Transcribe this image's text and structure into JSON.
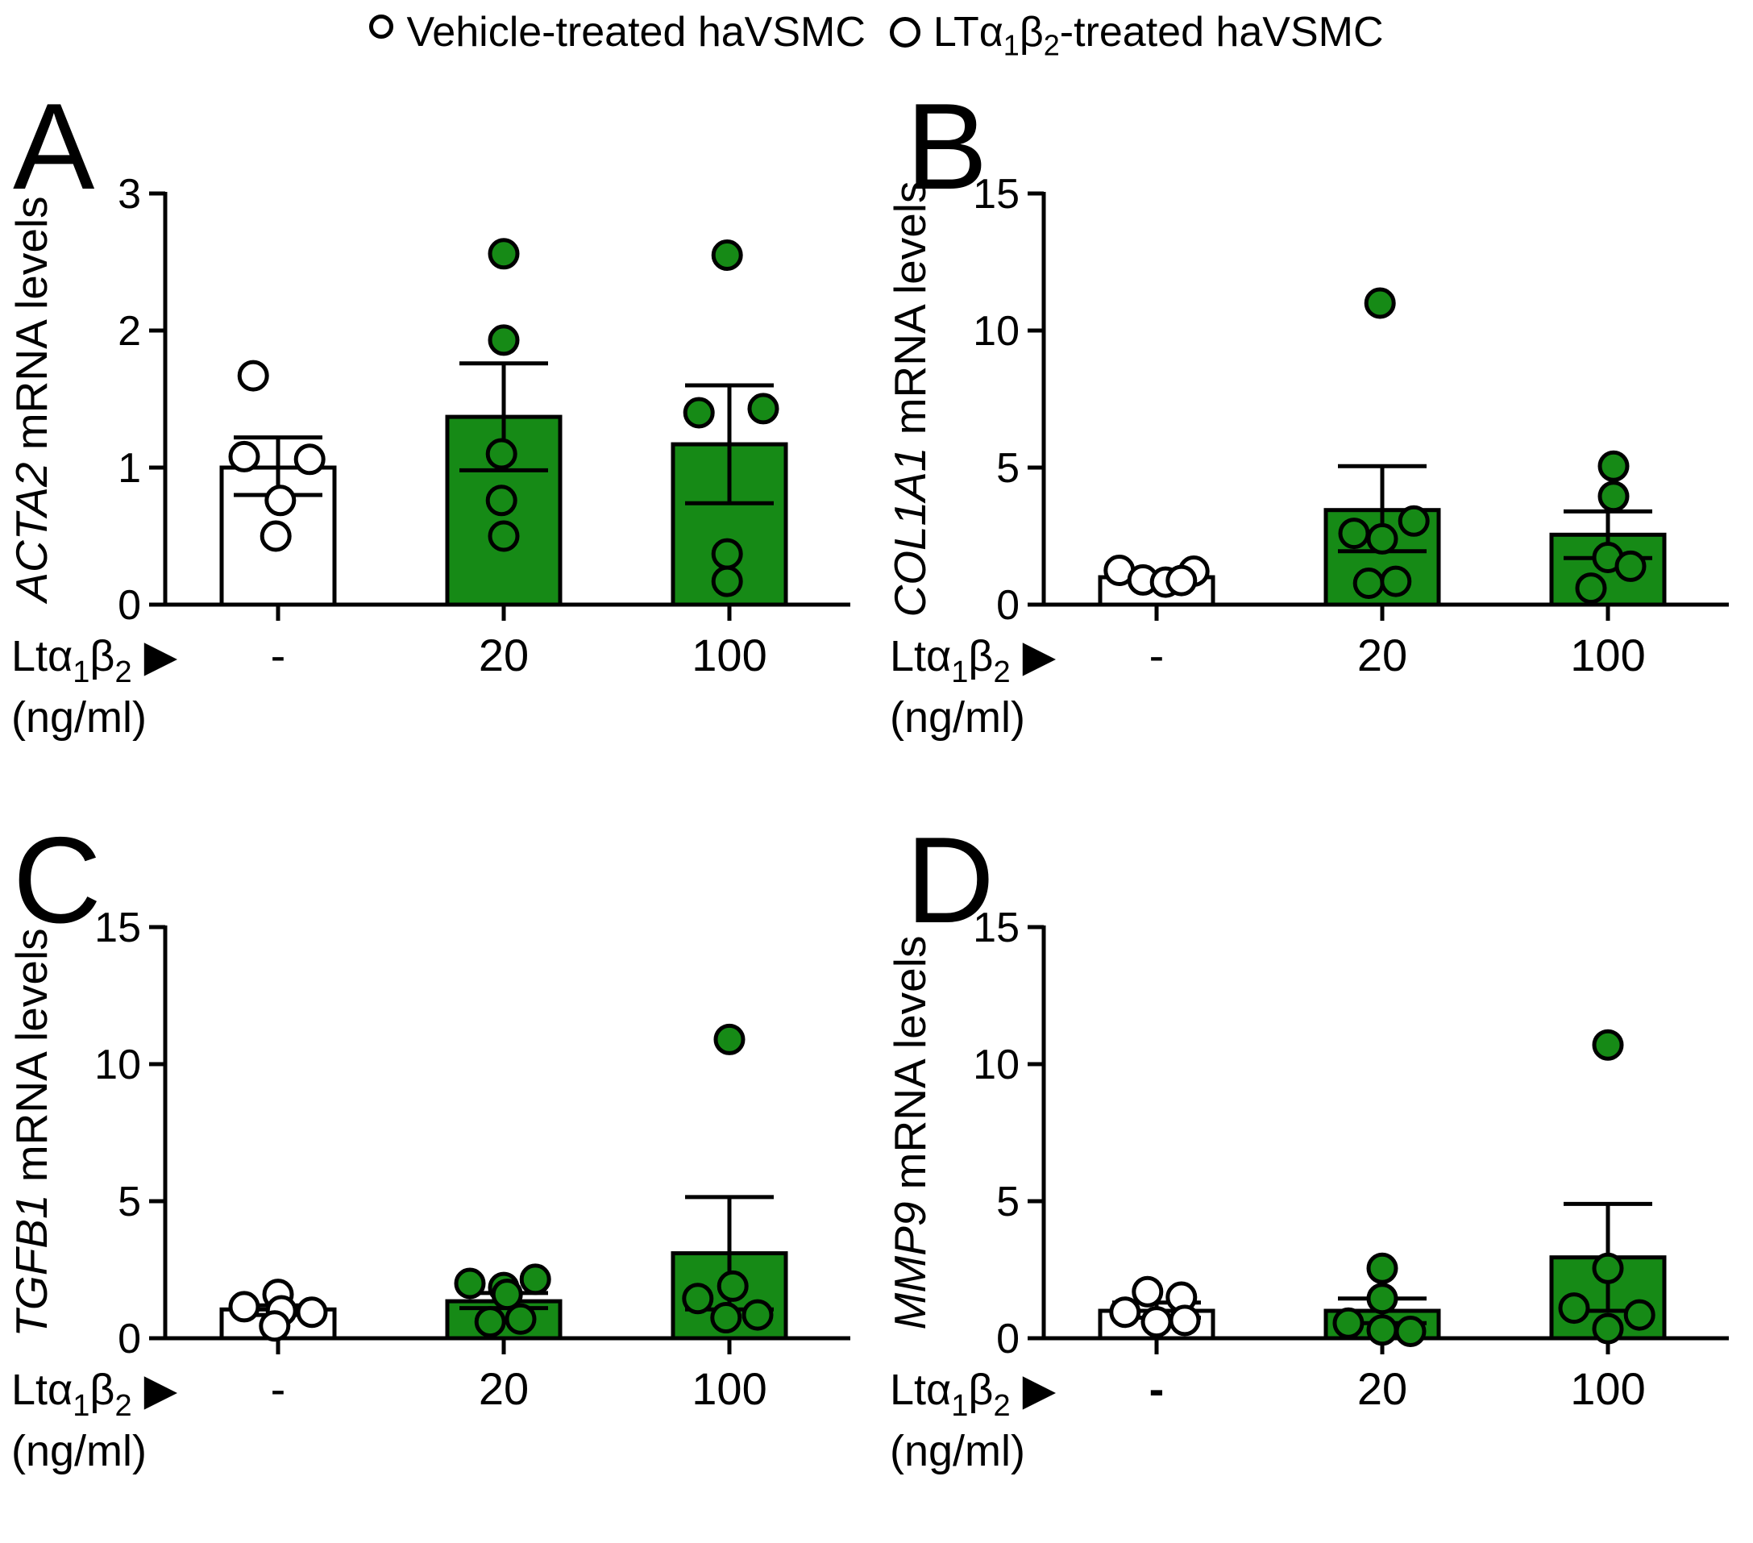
{
  "colors": {
    "bar_green": "#168A16",
    "point_green": "#168A16",
    "bar_white": "#FFFFFF",
    "stroke_black": "#000000",
    "background": "#FFFFFF"
  },
  "legend": {
    "items": [
      {
        "id": "vehicle",
        "marker": "open-circle",
        "label_parts": [
          {
            "t": "Vehicle-treated haVSMC",
            "sub": false
          }
        ]
      },
      {
        "id": "treated",
        "marker": "green-circle",
        "label_parts": [
          {
            "t": "LTα",
            "sub": false
          },
          {
            "t": "1",
            "sub": true
          },
          {
            "t": "β",
            "sub": false
          },
          {
            "t": "2",
            "sub": true
          },
          {
            "t": "-treated haVSMC",
            "sub": false
          }
        ]
      }
    ]
  },
  "x_annotation": {
    "line1_parts": [
      {
        "t": "Ltα",
        "sub": false
      },
      {
        "t": "1",
        "sub": true
      },
      {
        "t": "β",
        "sub": false
      },
      {
        "t": "2",
        "sub": true
      },
      {
        "t": " ▶",
        "sub": false
      }
    ],
    "line2": "(ng/ml)"
  },
  "chart_data": [
    {
      "type": "bar",
      "panel": "A",
      "title": "",
      "ylabel_gene": "ACTA2",
      "ylabel_rest": " mRNA levels",
      "xlabel": "Ltα1β2 (ng/ml)",
      "ylim": [
        0,
        3
      ],
      "yticks": [
        0,
        1,
        2,
        3
      ],
      "categories": [
        "-",
        "20",
        "100"
      ],
      "groups": [
        {
          "label": "-",
          "bold_label": false,
          "treated": false,
          "bar": 1.0,
          "err": [
            0.8,
            1.22
          ],
          "points": [
            {
              "v": 1.67,
              "j": -0.22
            },
            {
              "v": 1.08,
              "j": -0.3
            },
            {
              "v": 1.06,
              "j": 0.28
            },
            {
              "v": 0.76,
              "j": 0.02
            },
            {
              "v": 0.5,
              "j": -0.02
            }
          ]
        },
        {
          "label": "20",
          "bold_label": false,
          "treated": true,
          "bar": 1.37,
          "err": [
            0.98,
            1.76
          ],
          "points": [
            {
              "v": 2.56,
              "j": 0
            },
            {
              "v": 1.93,
              "j": 0
            },
            {
              "v": 1.1,
              "j": -0.02
            },
            {
              "v": 0.76,
              "j": -0.02
            },
            {
              "v": 0.5,
              "j": 0
            }
          ]
        },
        {
          "label": "100",
          "bold_label": false,
          "treated": true,
          "bar": 1.17,
          "err": [
            0.74,
            1.6
          ],
          "points": [
            {
              "v": 2.55,
              "j": -0.02
            },
            {
              "v": 1.43,
              "j": 0.3
            },
            {
              "v": 1.4,
              "j": -0.27
            },
            {
              "v": 0.37,
              "j": -0.02
            },
            {
              "v": 0.17,
              "j": -0.02
            }
          ]
        }
      ]
    },
    {
      "type": "bar",
      "panel": "B",
      "title": "",
      "ylabel_gene": "COL1A1",
      "ylabel_rest": " mRNA levels",
      "xlabel": "Ltα1β2 (ng/ml)",
      "ylim": [
        0,
        15
      ],
      "yticks": [
        0,
        5,
        10,
        15
      ],
      "categories": [
        "-",
        "20",
        "100"
      ],
      "groups": [
        {
          "label": "-",
          "bold_label": false,
          "treated": false,
          "bar": 1.0,
          "err": [
            0.88,
            1.12
          ],
          "points": [
            {
              "v": 1.25,
              "j": -0.33
            },
            {
              "v": 1.22,
              "j": 0.33
            },
            {
              "v": 0.9,
              "j": -0.12
            },
            {
              "v": 0.82,
              "j": 0.08
            },
            {
              "v": 0.88,
              "j": 0.22
            }
          ]
        },
        {
          "label": "20",
          "bold_label": false,
          "treated": true,
          "bar": 3.45,
          "err": [
            1.95,
            5.05
          ],
          "points": [
            {
              "v": 11.0,
              "j": -0.02
            },
            {
              "v": 3.05,
              "j": 0.28
            },
            {
              "v": 2.6,
              "j": -0.25
            },
            {
              "v": 2.4,
              "j": 0
            },
            {
              "v": 0.78,
              "j": -0.12
            },
            {
              "v": 0.85,
              "j": 0.12
            }
          ]
        },
        {
          "label": "100",
          "bold_label": false,
          "treated": true,
          "bar": 2.55,
          "err": [
            1.7,
            3.4
          ],
          "points": [
            {
              "v": 5.05,
              "j": 0.05
            },
            {
              "v": 3.95,
              "j": 0.05
            },
            {
              "v": 1.72,
              "j": 0
            },
            {
              "v": 1.4,
              "j": 0.2
            },
            {
              "v": 0.6,
              "j": -0.15
            }
          ]
        }
      ]
    },
    {
      "type": "bar",
      "panel": "C",
      "title": "",
      "ylabel_gene": "TGFB1",
      "ylabel_rest": " mRNA levels",
      "xlabel": "Ltα1β2 (ng/ml)",
      "ylim": [
        0,
        15
      ],
      "yticks": [
        0,
        5,
        10,
        15
      ],
      "categories": [
        "-",
        "20",
        "100"
      ],
      "groups": [
        {
          "label": "-",
          "bold_label": false,
          "treated": false,
          "bar": 1.05,
          "err": [
            0.85,
            1.2
          ],
          "points": [
            {
              "v": 1.6,
              "j": 0
            },
            {
              "v": 1.15,
              "j": -0.3
            },
            {
              "v": 1.0,
              "j": 0.03
            },
            {
              "v": 0.95,
              "j": 0.3
            },
            {
              "v": 0.45,
              "j": -0.03
            }
          ]
        },
        {
          "label": "20",
          "bold_label": false,
          "treated": true,
          "bar": 1.35,
          "err": [
            1.1,
            1.65
          ],
          "points": [
            {
              "v": 2.0,
              "j": -0.3
            },
            {
              "v": 1.85,
              "j": 0
            },
            {
              "v": 2.15,
              "j": 0.28
            },
            {
              "v": 1.6,
              "j": 0.03
            },
            {
              "v": 0.6,
              "j": -0.12
            },
            {
              "v": 0.7,
              "j": 0.15
            }
          ]
        },
        {
          "label": "100",
          "bold_label": false,
          "treated": true,
          "bar": 3.1,
          "err": [
            1.05,
            5.15
          ],
          "points": [
            {
              "v": 10.9,
              "j": 0
            },
            {
              "v": 1.9,
              "j": 0.03
            },
            {
              "v": 1.45,
              "j": -0.28
            },
            {
              "v": 0.85,
              "j": 0.25
            },
            {
              "v": 0.75,
              "j": -0.03
            }
          ]
        }
      ]
    },
    {
      "type": "bar",
      "panel": "D",
      "title": "",
      "ylabel_gene": "MMP9",
      "ylabel_rest": " mRNA levels",
      "xlabel": "Ltα1β2 (ng/ml)",
      "ylim": [
        0,
        15
      ],
      "yticks": [
        0,
        5,
        10,
        15
      ],
      "categories": [
        "-",
        "20",
        "100"
      ],
      "groups": [
        {
          "label": "-",
          "bold_label": true,
          "treated": false,
          "bar": 1.0,
          "err": [
            0.75,
            1.3
          ],
          "points": [
            {
              "v": 1.7,
              "j": -0.08
            },
            {
              "v": 1.5,
              "j": 0.22
            },
            {
              "v": 0.95,
              "j": -0.28
            },
            {
              "v": 0.6,
              "j": 0
            },
            {
              "v": 0.65,
              "j": 0.25
            }
          ]
        },
        {
          "label": "20",
          "bold_label": false,
          "treated": true,
          "bar": 1.0,
          "err": [
            0.55,
            1.45
          ],
          "points": [
            {
              "v": 2.55,
              "j": 0
            },
            {
              "v": 1.45,
              "j": 0
            },
            {
              "v": 0.55,
              "j": -0.3
            },
            {
              "v": 0.3,
              "j": 0
            },
            {
              "v": 0.25,
              "j": 0.25
            }
          ]
        },
        {
          "label": "100",
          "bold_label": false,
          "treated": true,
          "bar": 2.95,
          "err": [
            1.0,
            4.9
          ],
          "points": [
            {
              "v": 10.7,
              "j": 0
            },
            {
              "v": 2.55,
              "j": 0
            },
            {
              "v": 1.1,
              "j": -0.3
            },
            {
              "v": 0.85,
              "j": 0.28
            },
            {
              "v": 0.35,
              "j": 0
            }
          ]
        }
      ]
    }
  ],
  "panels": [
    {
      "letter": "A"
    },
    {
      "letter": "B"
    },
    {
      "letter": "C"
    },
    {
      "letter": "D"
    }
  ]
}
